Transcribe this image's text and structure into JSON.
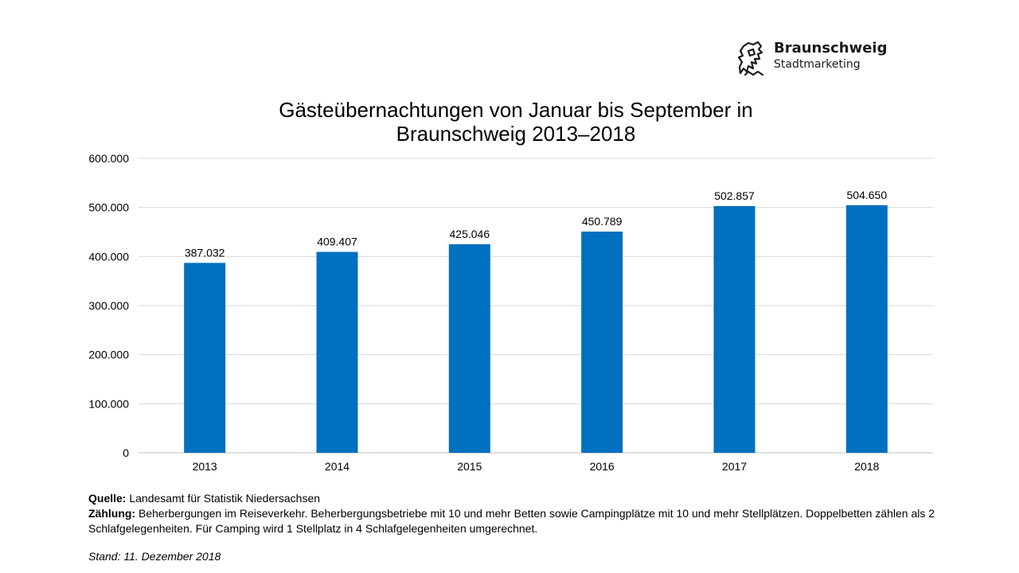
{
  "logo": {
    "name": "Braunschweig",
    "sub": "Stadtmarketing",
    "icon": "lion-icon"
  },
  "chart_data": {
    "type": "bar",
    "title_lines": [
      "Gästeübernachtungen von Januar bis September in",
      "Braunschweig 2013–2018"
    ],
    "categories": [
      "2013",
      "2014",
      "2015",
      "2016",
      "2017",
      "2018"
    ],
    "values": [
      387032,
      409407,
      425046,
      450789,
      502857,
      504650
    ],
    "value_labels": [
      "387.032",
      "409.407",
      "425.046",
      "450.789",
      "502.857",
      "504.650"
    ],
    "ylim": [
      0,
      600000
    ],
    "yticks": [
      0,
      100000,
      200000,
      300000,
      400000,
      500000,
      600000
    ],
    "ytick_labels": [
      "0",
      "100.000",
      "200.000",
      "300.000",
      "400.000",
      "500.000",
      "600.000"
    ],
    "grid": true,
    "legend": "none",
    "bar_color": "#0070C0"
  },
  "footer": {
    "source_label": "Quelle:",
    "source_text": " Landesamt für Statistik Niedersachsen",
    "count_label": "Zählung:",
    "count_text": " Beherbergungen im Reiseverkehr. Beherbergungsbetriebe mit 10 und mehr Betten sowie Campingplätze mit 10 und mehr Stellplätzen. Doppelbetten zählen als 2 Schlafgelegenheiten. Für Camping wird 1 Stellplatz in 4 Schlafgelegenheiten umgerechnet.",
    "stand": "Stand: 11. Dezember 2018"
  }
}
